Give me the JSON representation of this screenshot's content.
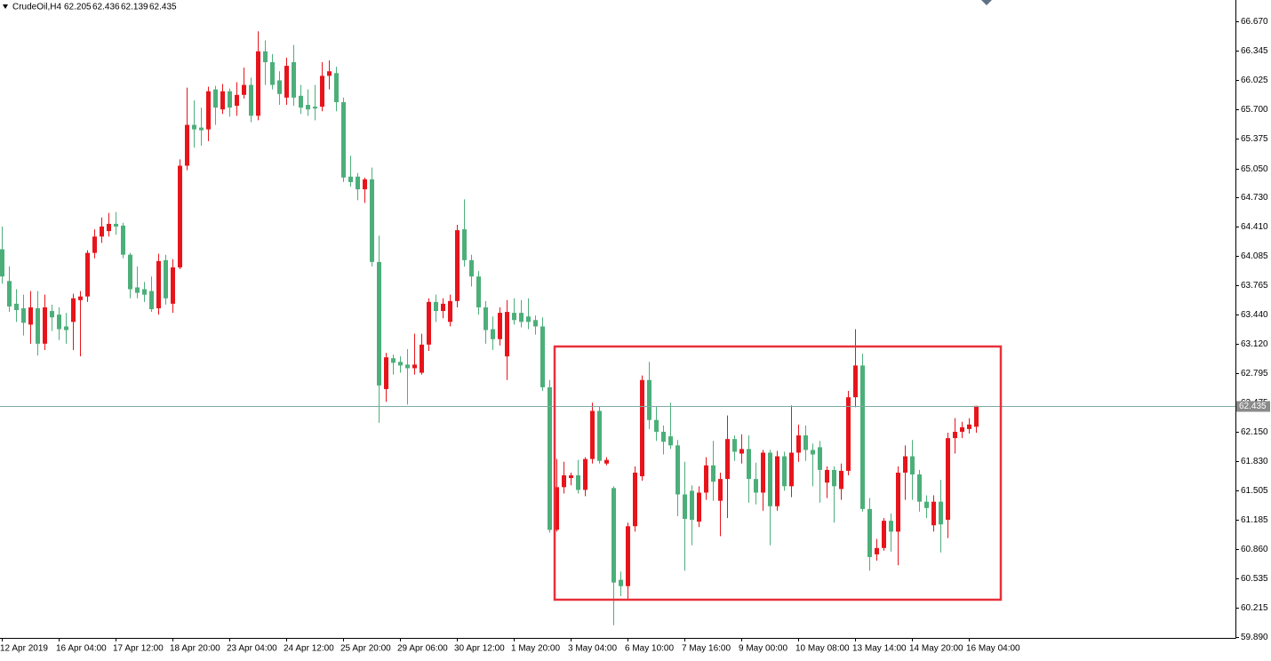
{
  "chart_data": {
    "type": "candlestick",
    "title": "CrudeOil,H4",
    "up_color": "#e8141b",
    "down_color": "#4caf7a",
    "ylim": [
      59.88,
      66.905
    ],
    "yticks": [
      {
        "value": 66.67,
        "label": "66.670"
      },
      66.345,
      66.025,
      {
        "value": 65.7,
        "label": "65.700"
      },
      65.375,
      {
        "value": 65.05,
        "label": "65.050"
      },
      {
        "value": 64.73,
        "label": "64.730"
      },
      {
        "value": 64.41,
        "label": "64.410"
      },
      64.085,
      63.765,
      {
        "value": 63.44,
        "label": "63.440"
      },
      {
        "value": 63.12,
        "label": "63.120"
      },
      62.795,
      62.475,
      {
        "value": 62.15,
        "label": "62.150"
      },
      {
        "value": 61.83,
        "label": "61.830"
      },
      61.505,
      61.185,
      {
        "value": 60.86,
        "label": "60.860"
      },
      60.535,
      60.215,
      {
        "value": 59.89,
        "label": "59.890"
      }
    ],
    "categories": [
      "12 Apr 2019",
      null,
      null,
      null,
      null,
      null,
      null,
      null,
      "16 Apr 04:00",
      null,
      null,
      null,
      null,
      null,
      null,
      null,
      "17 Apr 12:00",
      null,
      null,
      null,
      null,
      null,
      null,
      null,
      "18 Apr 20:00",
      null,
      null,
      null,
      null,
      null,
      null,
      null,
      "23 Apr 04:00",
      null,
      null,
      null,
      null,
      null,
      null,
      null,
      "24 Apr 12:00",
      null,
      null,
      null,
      null,
      null,
      null,
      null,
      "25 Apr 20:00",
      null,
      null,
      null,
      null,
      null,
      null,
      null,
      "29 Apr 06:00",
      null,
      null,
      null,
      null,
      null,
      null,
      null,
      "30 Apr 12:00",
      null,
      null,
      null,
      null,
      null,
      null,
      null,
      "1 May 20:00",
      null,
      null,
      null,
      null,
      null,
      null,
      null,
      "3 May 04:00",
      null,
      null,
      null,
      null,
      null,
      null,
      null,
      "6 May 10:00",
      null,
      null,
      null,
      null,
      null,
      null,
      null,
      "7 May 16:00",
      null,
      null,
      null,
      null,
      null,
      null,
      null,
      "9 May 00:00",
      null,
      null,
      null,
      null,
      null,
      null,
      null,
      "10 May 08:00",
      null,
      null,
      null,
      null,
      null,
      null,
      null,
      "13 May 14:00",
      null,
      null,
      null,
      null,
      null,
      null,
      null,
      "14 May 20:00",
      null,
      null,
      null,
      null,
      null,
      null,
      null,
      "16 May 04:00",
      null
    ],
    "open": [
      64.16,
      63.81,
      63.56,
      63.51,
      63.33,
      63.51,
      63.12,
      63.48,
      63.44,
      63.31,
      63.36,
      63.6,
      63.64,
      64.12,
      64.3,
      64.36,
      64.44,
      64.42,
      64.1,
      63.74,
      63.72,
      63.7,
      63.51,
      64.04,
      63.56,
      63.96,
      65.08,
      65.53,
      65.5,
      65.48,
      65.92,
      65.7,
      65.9,
      65.74,
      65.86,
      65.97,
      65.63,
      66.34,
      66.22,
      66.02,
      65.83,
      66.22,
      65.85,
      65.75,
      65.73,
      65.73,
      66.07,
      66.1,
      65.78,
      64.96,
      64.96,
      64.82,
      64.93,
      64.02,
      62.62,
      62.96,
      62.92,
      62.89,
      62.85,
      62.8,
      63.11,
      63.58,
      63.48,
      63.36,
      63.59,
      64.38,
      64.04,
      63.86,
      63.52,
      63.28,
      63.17,
      62.98,
      63.46,
      63.46,
      63.42,
      63.38,
      63.31,
      62.64,
      61.07,
      61.54,
      61.64,
      61.67,
      61.51,
      61.85,
      62.38,
      61.8,
      61.53,
      60.52,
      60.45,
      61.11,
      61.66,
      62.72,
      62.28,
      62.15,
      62.1,
      62.0,
      61.46,
      61.5,
      61.16,
      61.48,
      61.78,
      61.39,
      61.63,
      62.07,
      61.91,
      61.96,
      61.63,
      61.48,
      61.92,
      61.33,
      61.88,
      61.55,
      61.92,
      62.11,
      61.95,
      61.98,
      61.59,
      61.73,
      61.52,
      61.72,
      62.53,
      62.88,
      61.3,
      60.8,
      60.87,
      61.17,
      61.05,
      61.7,
      61.88,
      61.68,
      61.38,
      61.12,
      61.38,
      61.18,
      62.08,
      62.15,
      62.18,
      62.205
    ],
    "high": [
      64.41,
      63.97,
      63.72,
      63.66,
      63.7,
      63.7,
      63.66,
      63.55,
      63.52,
      63.46,
      63.67,
      63.7,
      64.15,
      64.38,
      64.51,
      64.56,
      64.57,
      64.45,
      64.12,
      63.97,
      63.8,
      63.86,
      64.11,
      64.1,
      64.05,
      65.15,
      65.94,
      65.8,
      65.72,
      65.95,
      65.96,
      65.98,
      65.93,
      66.0,
      66.16,
      66.05,
      66.56,
      66.46,
      66.31,
      66.12,
      66.27,
      66.41,
      65.97,
      65.92,
      65.97,
      66.22,
      66.24,
      66.17,
      65.83,
      65.19,
      65.0,
      64.95,
      65.06,
      64.31,
      63.02,
      63.0,
      62.98,
      63.06,
      63.23,
      63.23,
      63.62,
      63.66,
      63.62,
      63.66,
      64.43,
      64.71,
      64.1,
      63.92,
      63.59,
      63.42,
      63.52,
      63.6,
      63.62,
      63.6,
      63.62,
      63.43,
      63.41,
      62.72,
      61.85,
      61.82,
      61.7,
      61.84,
      61.87,
      62.47,
      62.43,
      61.87,
      61.55,
      60.61,
      61.15,
      61.77,
      62.77,
      62.92,
      62.43,
      62.22,
      62.47,
      62.06,
      61.82,
      61.56,
      61.55,
      61.87,
      62.05,
      61.7,
      62.33,
      62.11,
      62.12,
      62.11,
      61.81,
      61.95,
      61.95,
      61.94,
      61.93,
      62.44,
      62.23,
      62.22,
      62.02,
      62.05,
      61.77,
      61.77,
      61.8,
      62.6,
      63.28,
      63.01,
      61.42,
      60.97,
      61.2,
      61.25,
      61.77,
      62.0,
      62.06,
      61.73,
      61.45,
      61.45,
      61.62,
      62.14,
      62.3,
      62.26,
      62.3,
      62.436
    ],
    "low": [
      63.78,
      63.47,
      63.36,
      63.21,
      63.12,
      62.99,
      63.05,
      63.26,
      63.16,
      63.12,
      63.05,
      62.98,
      63.58,
      64.06,
      64.23,
      64.3,
      64.32,
      64.06,
      63.62,
      63.62,
      63.58,
      63.47,
      63.44,
      63.55,
      63.46,
      63.94,
      65.03,
      65.28,
      65.3,
      65.35,
      65.53,
      65.65,
      65.62,
      65.63,
      65.82,
      65.56,
      65.58,
      65.97,
      65.92,
      65.75,
      65.75,
      65.74,
      65.65,
      65.63,
      65.58,
      65.68,
      65.92,
      65.68,
      64.9,
      64.85,
      64.7,
      64.67,
      63.97,
      62.25,
      62.48,
      62.78,
      62.8,
      62.45,
      62.78,
      62.78,
      63.04,
      63.36,
      63.4,
      63.31,
      63.52,
      63.97,
      63.75,
      63.44,
      63.12,
      63.05,
      63.1,
      62.72,
      63.33,
      63.3,
      63.28,
      63.22,
      62.6,
      61.04,
      61.05,
      61.47,
      61.56,
      61.47,
      61.44,
      61.8,
      61.8,
      61.78,
      60.02,
      60.34,
      60.3,
      61.05,
      61.61,
      62.18,
      62.05,
      61.9,
      61.96,
      61.22,
      60.62,
      60.9,
      61.1,
      61.4,
      61.39,
      61.0,
      61.2,
      61.83,
      61.8,
      61.37,
      61.35,
      61.28,
      60.9,
      61.28,
      61.5,
      61.43,
      61.82,
      61.83,
      61.55,
      61.37,
      61.42,
      61.15,
      61.4,
      61.67,
      62.42,
      61.27,
      60.62,
      60.73,
      60.84,
      60.83,
      60.68,
      61.4,
      61.4,
      61.27,
      61.2,
      61.05,
      60.82,
      60.98,
      61.91,
      62.08,
      62.13,
      62.139
    ],
    "close": [
      63.86,
      63.53,
      63.49,
      63.35,
      63.52,
      63.12,
      63.52,
      63.41,
      63.28,
      63.27,
      63.62,
      63.64,
      64.12,
      64.3,
      64.41,
      64.44,
      64.41,
      64.1,
      63.72,
      63.68,
      63.66,
      63.5,
      64.03,
      63.62,
      63.96,
      65.08,
      65.53,
      65.48,
      65.47,
      65.9,
      65.72,
      65.9,
      65.72,
      65.86,
      65.97,
      65.63,
      66.34,
      66.22,
      65.97,
      65.87,
      66.18,
      65.83,
      65.72,
      65.7,
      65.71,
      66.07,
      66.12,
      65.78,
      64.95,
      64.9,
      64.82,
      64.93,
      64.02,
      62.66,
      62.97,
      62.91,
      62.88,
      62.85,
      62.89,
      63.11,
      63.58,
      63.48,
      63.56,
      63.59,
      64.37,
      64.04,
      63.86,
      63.52,
      63.27,
      63.17,
      63.46,
      63.47,
      63.38,
      63.36,
      63.36,
      63.31,
      62.64,
      61.07,
      61.54,
      61.67,
      61.67,
      61.51,
      61.85,
      62.38,
      61.83,
      61.84,
      60.49,
      60.45,
      61.11,
      61.7,
      62.72,
      62.28,
      62.15,
      62.04,
      62.0,
      61.46,
      61.19,
      61.18,
      61.48,
      61.78,
      61.6,
      61.63,
      62.07,
      61.93,
      61.96,
      61.63,
      61.48,
      61.92,
      61.33,
      61.88,
      61.55,
      61.92,
      62.11,
      61.95,
      61.9,
      61.73,
      61.73,
      61.55,
      61.72,
      62.53,
      62.88,
      61.3,
      60.77,
      60.87,
      61.17,
      61.05,
      61.7,
      61.88,
      61.68,
      61.38,
      61.31,
      61.38,
      61.13,
      62.08,
      62.15,
      62.2,
      62.23,
      62.435
    ]
  }
}
